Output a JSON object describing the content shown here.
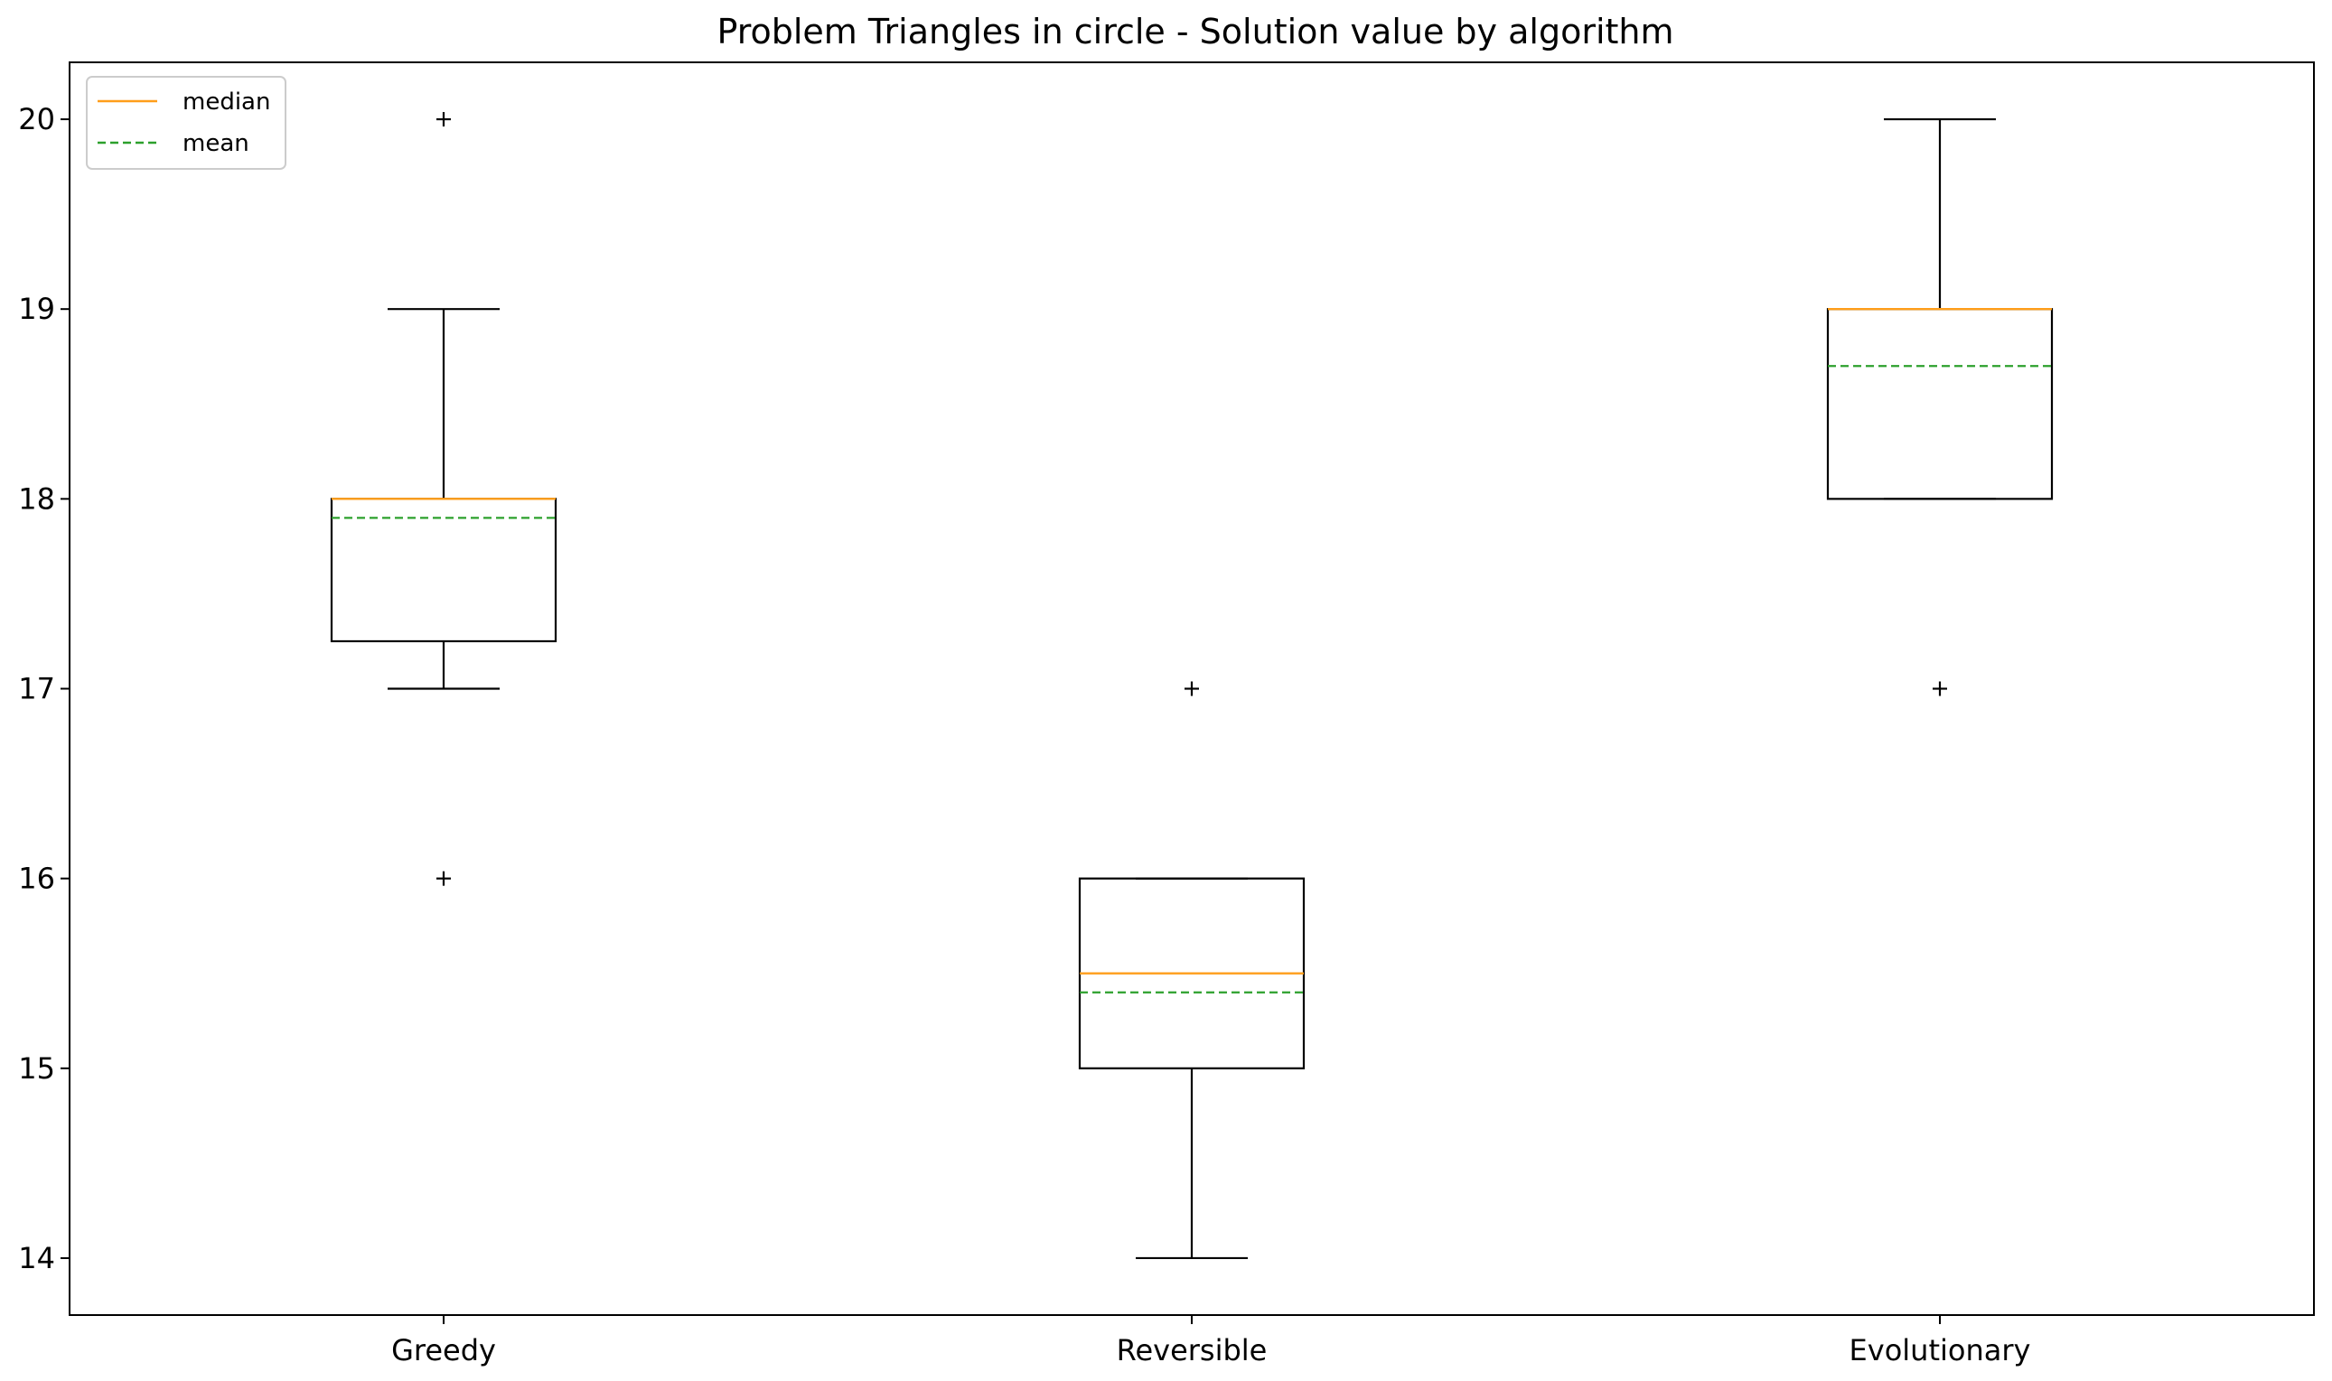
{
  "chart_data": {
    "type": "box",
    "title": "Problem Triangles in circle - Solution value by algorithm",
    "xlabel": "",
    "ylabel": "",
    "ylim": [
      13.7,
      20.3
    ],
    "yticks": [
      14,
      15,
      16,
      17,
      18,
      19,
      20
    ],
    "categories": [
      "Greedy",
      "Reversible",
      "Evolutionary"
    ],
    "series": [
      {
        "category": "Greedy",
        "whisker_low": 17,
        "q1": 17.25,
        "median": 18,
        "mean": 17.9,
        "q3": 18,
        "whisker_high": 19,
        "outliers": [
          20,
          16
        ]
      },
      {
        "category": "Reversible",
        "whisker_low": 14,
        "q1": 15,
        "median": 15.5,
        "mean": 15.4,
        "q3": 16,
        "whisker_high": 16,
        "outliers": [
          17
        ]
      },
      {
        "category": "Evolutionary",
        "whisker_low": 18,
        "q1": 18,
        "median": 19,
        "mean": 18.7,
        "q3": 19,
        "whisker_high": 20,
        "outliers": [
          17
        ]
      }
    ],
    "legend": {
      "position": "top-left",
      "items": [
        {
          "label": "median",
          "color": "#ff9e1a",
          "style": "solid"
        },
        {
          "label": "mean",
          "color": "#2ca02c",
          "style": "dashed"
        }
      ]
    },
    "colors": {
      "box": "#000000",
      "median": "#ff9e1a",
      "mean": "#2ca02c"
    },
    "grid": false
  }
}
